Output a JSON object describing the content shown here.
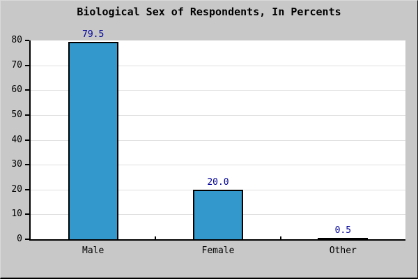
{
  "window": {
    "background": "#C8C8C8"
  },
  "chart_data": {
    "type": "bar",
    "title": "Biological Sex of Respondents, In Percents",
    "categories": [
      "Male",
      "Female",
      "Other"
    ],
    "values": [
      79.5,
      20.0,
      0.5
    ],
    "value_labels": [
      "79.5",
      "20.0",
      "0.5"
    ],
    "yticks": [
      0,
      10,
      20,
      30,
      40,
      50,
      60,
      70,
      80
    ],
    "ytick_labels": [
      "0",
      "10",
      "20",
      "30",
      "40",
      "50",
      "60",
      "70",
      "80"
    ],
    "ylim": [
      0,
      80
    ],
    "xlabel": "",
    "ylabel": "",
    "grid": true,
    "legend": false,
    "colors": {
      "bar_fill": "#3399CC",
      "bar_border": "#000000",
      "value_label": "#000099",
      "grid_line": "#E0E0E0",
      "plot_background": "#FFFFFF",
      "axis": "#000000",
      "text": "#000000",
      "background": "#C8C8C8"
    }
  }
}
